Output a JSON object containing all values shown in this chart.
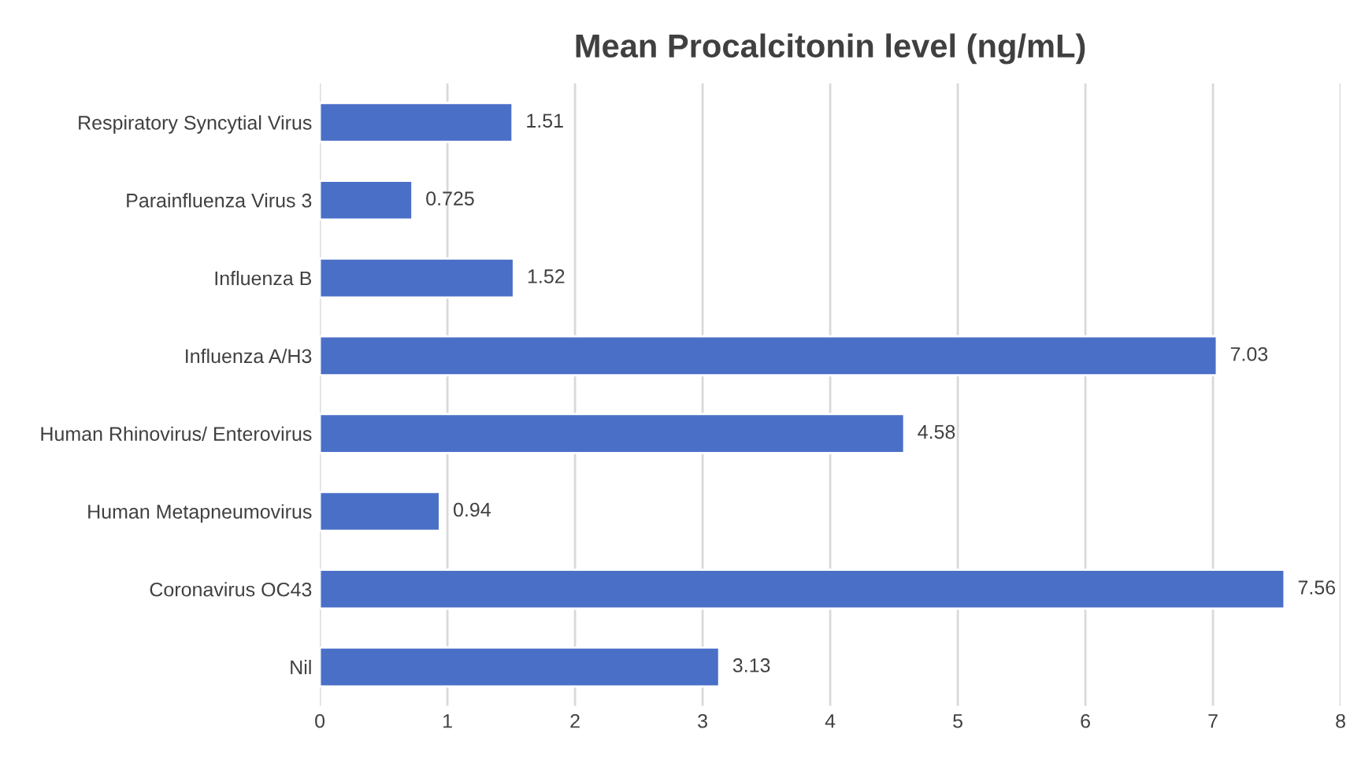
{
  "chart_data": {
    "type": "bar",
    "orientation": "horizontal",
    "title": "Mean Procalcitonin level (ng/mL)",
    "categories": [
      "Respiratory Syncytial Virus",
      "Parainfluenza Virus 3",
      "Influenza B",
      "Influenza A/H3",
      "Human Rhinovirus/ Enterovirus",
      "Human Metapneumovirus",
      "Coronavirus OC43",
      "Nil"
    ],
    "values": [
      1.51,
      0.725,
      1.52,
      7.03,
      4.58,
      0.94,
      7.56,
      3.13
    ],
    "color": "#4a6fc7",
    "xlim": [
      0,
      8
    ],
    "xticks": [
      0,
      1,
      2,
      3,
      4,
      5,
      6,
      7,
      8
    ],
    "grid": "x",
    "data_labels": true
  }
}
